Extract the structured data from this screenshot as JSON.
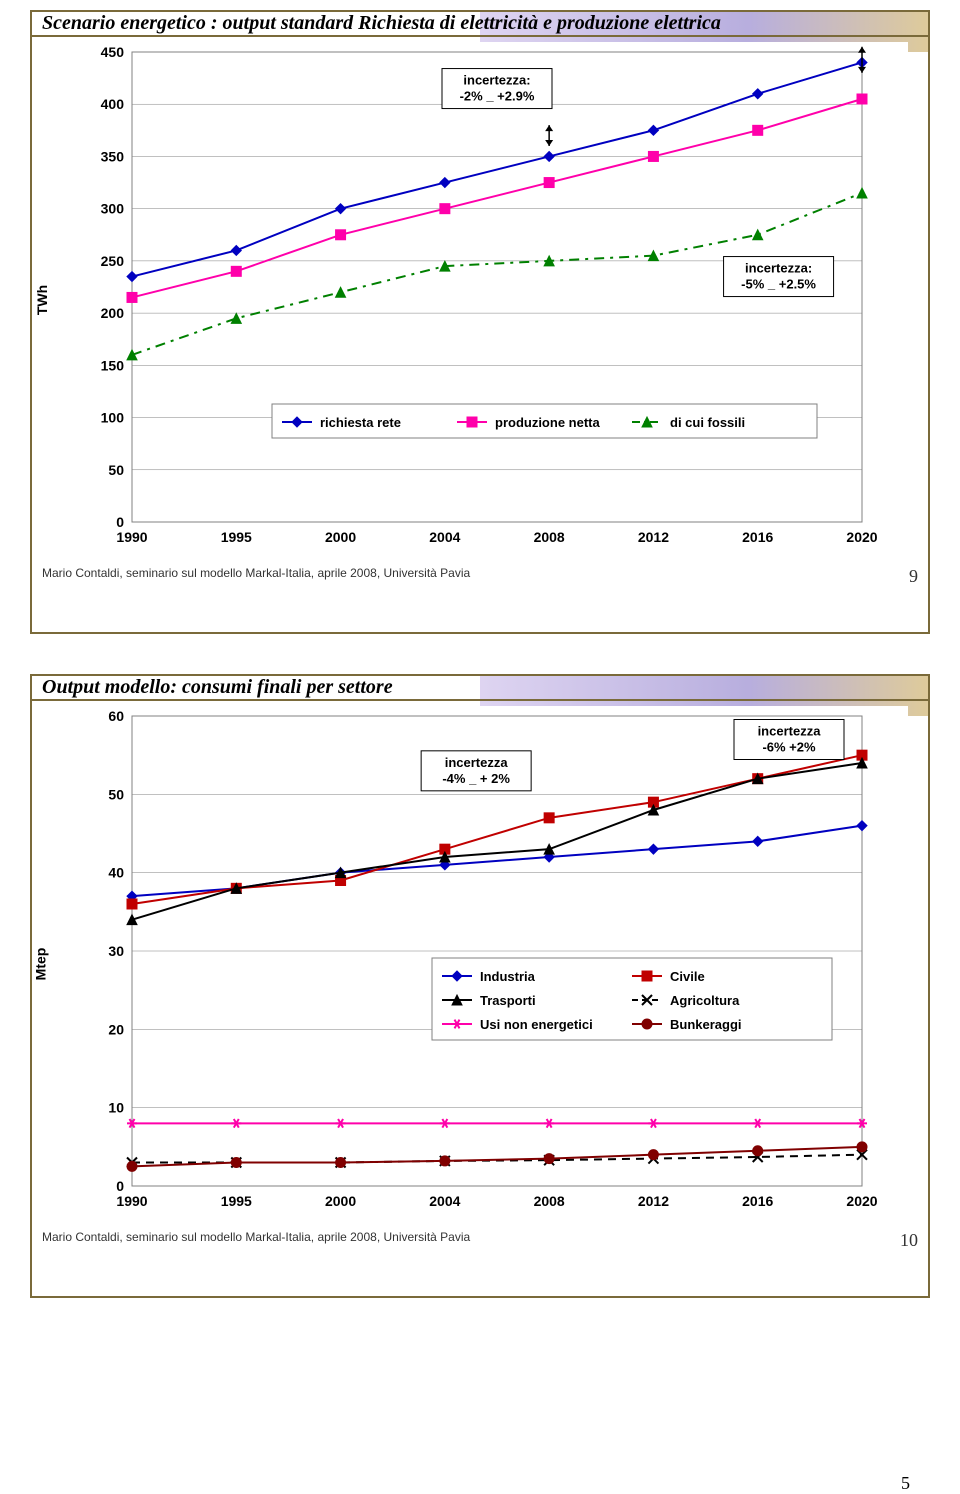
{
  "slide1": {
    "title": "Scenario energetico : output standard Richiesta di elettricità e produzione elettrica",
    "title_fontsize": 20,
    "title_color": "#000000",
    "y_axis_label": "TWh",
    "x_ticks": [
      "1990",
      "1995",
      "2000",
      "2004",
      "2008",
      "2012",
      "2016",
      "2020"
    ],
    "y_ticks": [
      0,
      50,
      100,
      150,
      200,
      250,
      300,
      350,
      400,
      450
    ],
    "y_min": 0,
    "y_max": 450,
    "plot_bg": "#ffffff",
    "grid_color": "#808080",
    "legend_items": [
      {
        "label": "richiesta rete",
        "color": "#0000c0",
        "marker": "diamond",
        "line": "solid"
      },
      {
        "label": "produzione netta",
        "color": "#ff00aa",
        "marker": "square",
        "line": "solid"
      },
      {
        "label": "di cui fossili",
        "color": "#008000",
        "marker": "triangle",
        "line": "dashdot"
      }
    ],
    "annotations": [
      {
        "text": "incertezza:\n-2% _ +2.9%",
        "x_idx": 3.5,
        "y": 415,
        "box": true
      },
      {
        "text": "incertezza:\n-5% _ +2.5%",
        "x_idx": 6.2,
        "y": 235,
        "box": true
      }
    ],
    "series": {
      "richiesta_rete": {
        "color": "#0000c0",
        "marker": "diamond",
        "line": "solid",
        "values": [
          235,
          260,
          300,
          325,
          350,
          375,
          410,
          440
        ]
      },
      "produzione_netta": {
        "color": "#ff00aa",
        "marker": "square",
        "line": "solid",
        "values": [
          215,
          240,
          275,
          300,
          325,
          350,
          375,
          405
        ]
      },
      "di_cui_fossili": {
        "color": "#008000",
        "marker": "triangle",
        "line": "dashdot",
        "values": [
          160,
          195,
          220,
          245,
          250,
          255,
          275,
          315
        ]
      }
    },
    "error_bars": [
      {
        "x_idx": 4,
        "y": 370,
        "low": 360,
        "high": 380
      },
      {
        "x_idx": 7,
        "y": 440,
        "low": 430,
        "high": 455
      }
    ],
    "footer_text": "Mario Contaldi, seminario sul modello Markal-Italia, aprile 2008, Università Pavia",
    "slide_num": "9"
  },
  "slide2": {
    "title": "Output modello: consumi finali per settore",
    "title_fontsize": 20,
    "title_color": "#000000",
    "y_axis_label": "Mtep",
    "x_ticks": [
      "1990",
      "1995",
      "2000",
      "2004",
      "2008",
      "2012",
      "2016",
      "2020"
    ],
    "y_ticks": [
      0,
      10,
      20,
      30,
      40,
      50,
      60
    ],
    "y_min": 0,
    "y_max": 60,
    "plot_bg": "#ffffff",
    "grid_color": "#808080",
    "legend_items": [
      {
        "label": "Industria",
        "color": "#0000c0",
        "marker": "diamond",
        "line": "solid"
      },
      {
        "label": "Civile",
        "color": "#c00000",
        "marker": "square",
        "line": "solid"
      },
      {
        "label": "Trasporti",
        "color": "#000000",
        "marker": "triangle",
        "line": "solid"
      },
      {
        "label": "Agricoltura",
        "color": "#000000",
        "marker": "x",
        "line": "dash"
      },
      {
        "label": "Usi non energetici",
        "color": "#ff00aa",
        "marker": "star",
        "line": "solid"
      },
      {
        "label": "Bunkeraggi",
        "color": "#800000",
        "marker": "circle",
        "line": "solid"
      }
    ],
    "annotations": [
      {
        "text": "incertezza\n-4% _ + 2%",
        "x_idx": 3.3,
        "y": 53,
        "box": true
      },
      {
        "text": "incertezza\n-6%    +2%",
        "x_idx": 6.3,
        "y": 57,
        "box": true
      }
    ],
    "series": {
      "industria": {
        "color": "#0000c0",
        "marker": "diamond",
        "line": "solid",
        "values": [
          37,
          38,
          40,
          41,
          42,
          43,
          44,
          46
        ]
      },
      "civile": {
        "color": "#c00000",
        "marker": "square",
        "line": "solid",
        "values": [
          36,
          38,
          39,
          43,
          47,
          49,
          52,
          55
        ]
      },
      "trasporti": {
        "color": "#000000",
        "marker": "triangle",
        "line": "solid",
        "values": [
          34,
          38,
          40,
          42,
          43,
          48,
          52,
          54
        ]
      },
      "agricoltura": {
        "color": "#000000",
        "marker": "x",
        "line": "dash",
        "values": [
          3,
          3,
          3,
          3.2,
          3.3,
          3.5,
          3.7,
          4
        ]
      },
      "usi_non": {
        "color": "#ff00aa",
        "marker": "star",
        "line": "solid",
        "values": [
          8,
          8,
          8,
          8,
          8,
          8,
          8,
          8
        ]
      },
      "bunkeraggi": {
        "color": "#800000",
        "marker": "circle",
        "line": "solid",
        "values": [
          2.5,
          3,
          3,
          3.2,
          3.5,
          4,
          4.5,
          5
        ]
      }
    },
    "footer_text": "Mario Contaldi, seminario sul modello Markal-Italia, aprile 2008, Università Pavia",
    "slide_num": "10"
  },
  "page_footer_num": "5"
}
